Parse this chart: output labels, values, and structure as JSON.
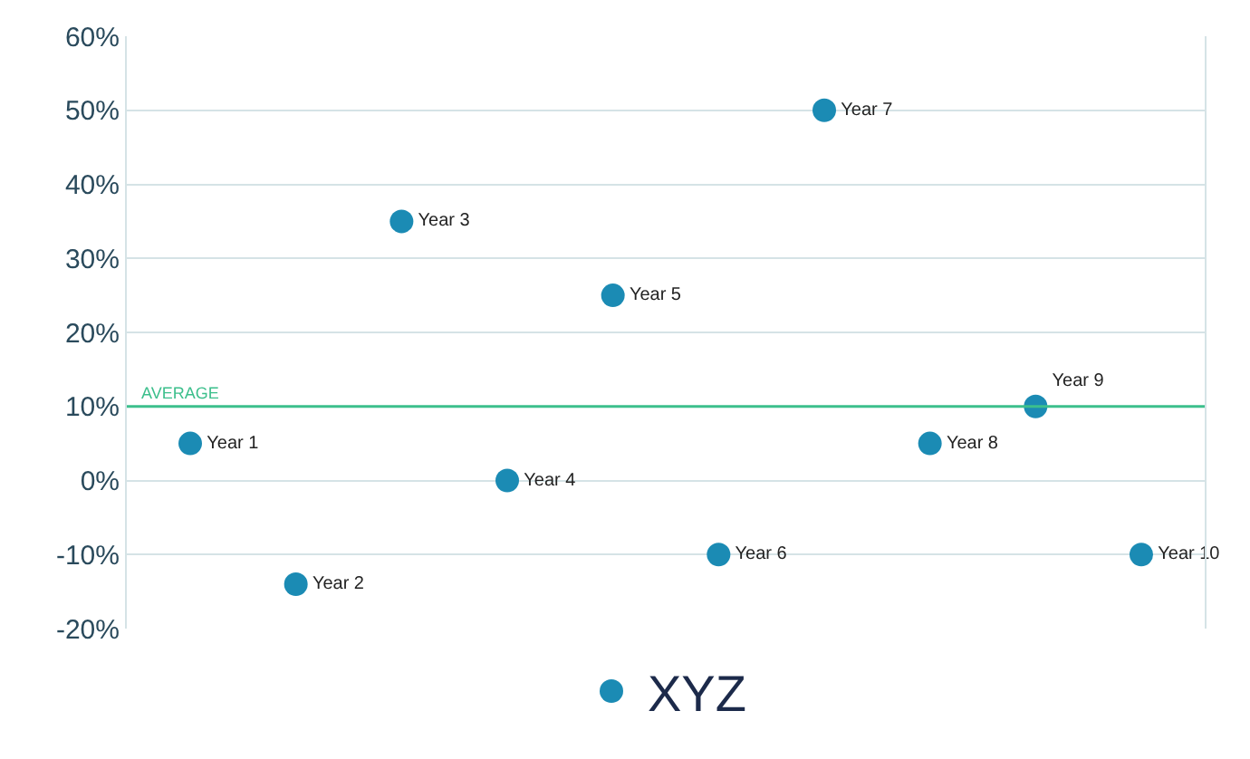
{
  "chart_data": {
    "type": "scatter",
    "categories": [
      null,
      null,
      null,
      null,
      null,
      null,
      null,
      null,
      null,
      null
    ],
    "series": [
      {
        "name": "XYZ",
        "color": "#1b8bb4",
        "values": [
          5,
          -14,
          35,
          0,
          25,
          -10,
          50,
          5,
          10,
          -10
        ],
        "value_labels": [
          "Year 1",
          "Year 2",
          "Year 3",
          "Year 4",
          "Year 5",
          "Year 6",
          "Year 7",
          "Year 8",
          "Year 9",
          "Year 10"
        ]
      }
    ],
    "ylim": [
      -20,
      60
    ],
    "yticks": [
      {
        "value": -20,
        "label": "-20%"
      },
      {
        "value": -10,
        "label": "-10%"
      },
      {
        "value": 0,
        "label": "0%"
      },
      {
        "value": 10,
        "label": "10%"
      },
      {
        "value": 20,
        "label": "20%"
      },
      {
        "value": 30,
        "label": "30%"
      },
      {
        "value": 40,
        "label": "40%"
      },
      {
        "value": 50,
        "label": "50%"
      },
      {
        "value": 60,
        "label": "60%"
      }
    ],
    "ref_lines": [
      {
        "axis": "y",
        "value": 10,
        "label": "AVERAGE",
        "color": "#3cbf8c"
      }
    ],
    "grid": "y",
    "legend": "bottom",
    "marker": "circle",
    "tick_labels": "y"
  }
}
